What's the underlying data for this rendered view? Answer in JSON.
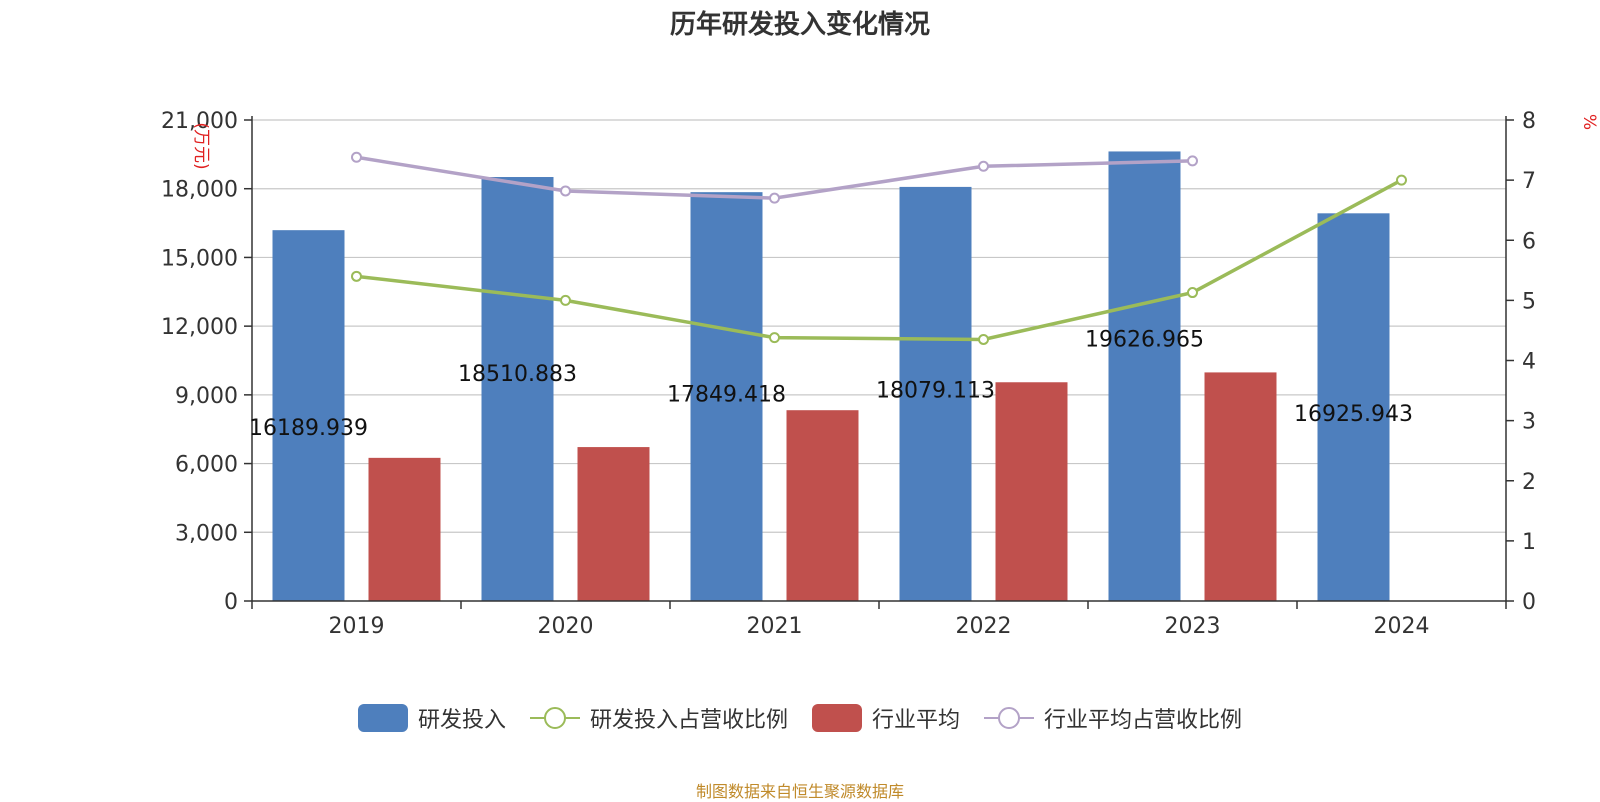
{
  "chart_data": {
    "type": "bar",
    "title": "历年研发投入变化情况",
    "categories": [
      "2019",
      "2020",
      "2021",
      "2022",
      "2023",
      "2024"
    ],
    "ylabel_left": "(万元)",
    "ylabel_right": "%",
    "ylim_left": [
      0,
      21000
    ],
    "ylim_right": [
      0,
      8
    ],
    "yticks_left": [
      "0",
      "3,000",
      "6,000",
      "9,000",
      "12,000",
      "15,000",
      "18,000",
      "21,000"
    ],
    "yticks_right": [
      "0",
      "1",
      "2",
      "3",
      "4",
      "5",
      "6",
      "7",
      "8"
    ],
    "grid": true,
    "legend_position": "bottom",
    "series": [
      {
        "name": "研发投入",
        "kind": "bar",
        "axis": "left",
        "color": "#4e7fbd",
        "values": [
          16189.939,
          18510.883,
          17849.418,
          18079.113,
          19626.965,
          16925.943
        ],
        "labels": [
          "16189.939",
          "18510.883",
          "17849.418",
          "18079.113",
          "19626.965",
          "16925.943"
        ]
      },
      {
        "name": "行业平均",
        "kind": "bar",
        "axis": "left",
        "color": "#c0504d",
        "values": [
          6250,
          6720,
          8330,
          9550,
          9980,
          null
        ]
      },
      {
        "name": "研发投入占营收比例",
        "kind": "line",
        "axis": "right",
        "color": "#9bbb59",
        "values": [
          5.4,
          5.0,
          4.38,
          4.35,
          5.13,
          7.0
        ]
      },
      {
        "name": "行业平均占营收比例",
        "kind": "line",
        "axis": "right",
        "color": "#b3a2c7",
        "values": [
          7.38,
          6.82,
          6.7,
          7.23,
          7.32,
          null
        ]
      }
    ]
  },
  "source": "制图数据来自恒生聚源数据库"
}
